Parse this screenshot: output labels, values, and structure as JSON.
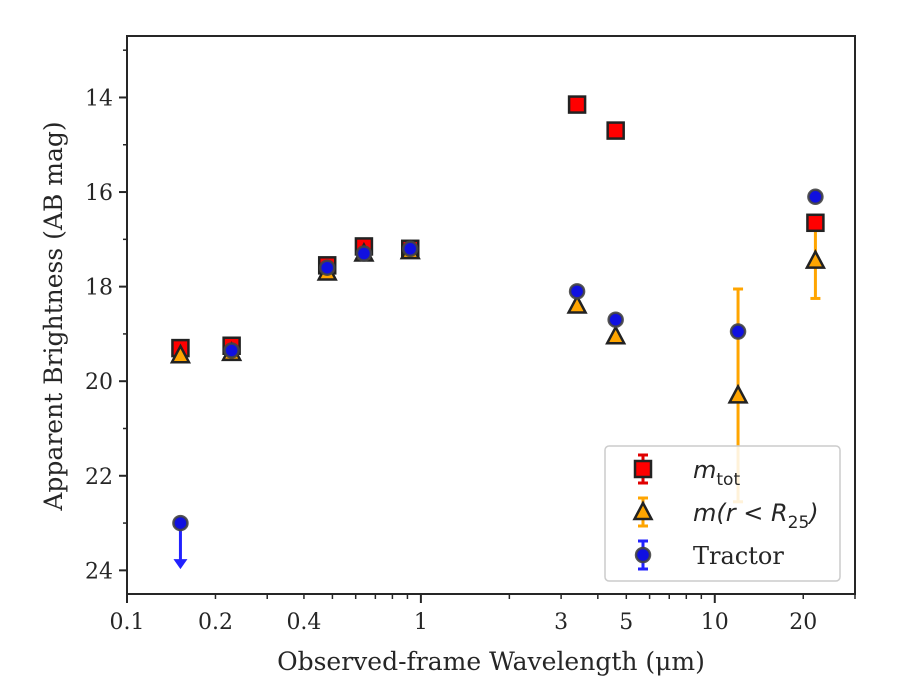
{
  "chart_data": {
    "type": "scatter",
    "title": "",
    "xlabel": "Observed-frame Wavelength (μm)",
    "ylabel": "Apparent Brightness (AB mag)",
    "xscale": "log",
    "xlim": [
      0.1,
      30
    ],
    "ylim": [
      24.5,
      12.7
    ],
    "y_inverted": true,
    "grid": false,
    "legend_position": "lower-right",
    "x_ticks": [
      0.1,
      0.2,
      0.4,
      1,
      3,
      5,
      10,
      20
    ],
    "x_tick_labels": [
      "0.1",
      "0.2",
      "0.4",
      "1",
      "3",
      "5",
      "10",
      "20"
    ],
    "y_ticks": [
      14,
      16,
      18,
      20,
      22,
      24
    ],
    "y_tick_labels": [
      "14",
      "16",
      "18",
      "20",
      "22",
      "24"
    ],
    "series": [
      {
        "name": "m_tot",
        "legend_label": {
          "main": "m",
          "sub": "tot",
          "suffix": ""
        },
        "marker": "square",
        "color": "#ff0000",
        "edge_color": "#222222",
        "err_color": "#e00000",
        "points": [
          {
            "x": 0.152,
            "y": 19.3
          },
          {
            "x": 0.227,
            "y": 19.25
          },
          {
            "x": 0.48,
            "y": 17.55
          },
          {
            "x": 0.64,
            "y": 17.15
          },
          {
            "x": 0.92,
            "y": 17.2
          },
          {
            "x": 3.4,
            "y": 14.15
          },
          {
            "x": 4.6,
            "y": 14.7
          },
          {
            "x": 22,
            "y": 16.65
          }
        ]
      },
      {
        "name": "m(r < R25)",
        "legend_label": {
          "main": "m(r < R",
          "sub": "25",
          "suffix": ")"
        },
        "marker": "triangle",
        "color": "#ffa500",
        "edge_color": "#222222",
        "err_color": "#ffa500",
        "points": [
          {
            "x": 0.152,
            "y": 19.45
          },
          {
            "x": 0.227,
            "y": 19.4
          },
          {
            "x": 0.48,
            "y": 17.7
          },
          {
            "x": 0.64,
            "y": 17.3
          },
          {
            "x": 0.92,
            "y": 17.25
          },
          {
            "x": 3.4,
            "y": 18.4
          },
          {
            "x": 4.6,
            "y": 19.05
          },
          {
            "x": 12,
            "y": 20.3,
            "err": [
              18.05,
              22.55
            ]
          },
          {
            "x": 22,
            "y": 17.45,
            "err": [
              16.65,
              18.25
            ]
          }
        ]
      },
      {
        "name": "Tractor",
        "legend_label": {
          "main": "Tractor",
          "sub": "",
          "suffix": ""
        },
        "marker": "circle",
        "color": "#1010e0",
        "edge_color": "#444444",
        "err_color": "#2222ff",
        "points": [
          {
            "x": 0.152,
            "y": 23.0,
            "upper_limit": true
          },
          {
            "x": 0.227,
            "y": 19.35
          },
          {
            "x": 0.48,
            "y": 17.6
          },
          {
            "x": 0.64,
            "y": 17.3
          },
          {
            "x": 0.92,
            "y": 17.2
          },
          {
            "x": 3.4,
            "y": 18.1
          },
          {
            "x": 4.6,
            "y": 18.7
          },
          {
            "x": 12,
            "y": 18.95
          },
          {
            "x": 22,
            "y": 16.1
          }
        ]
      }
    ]
  }
}
